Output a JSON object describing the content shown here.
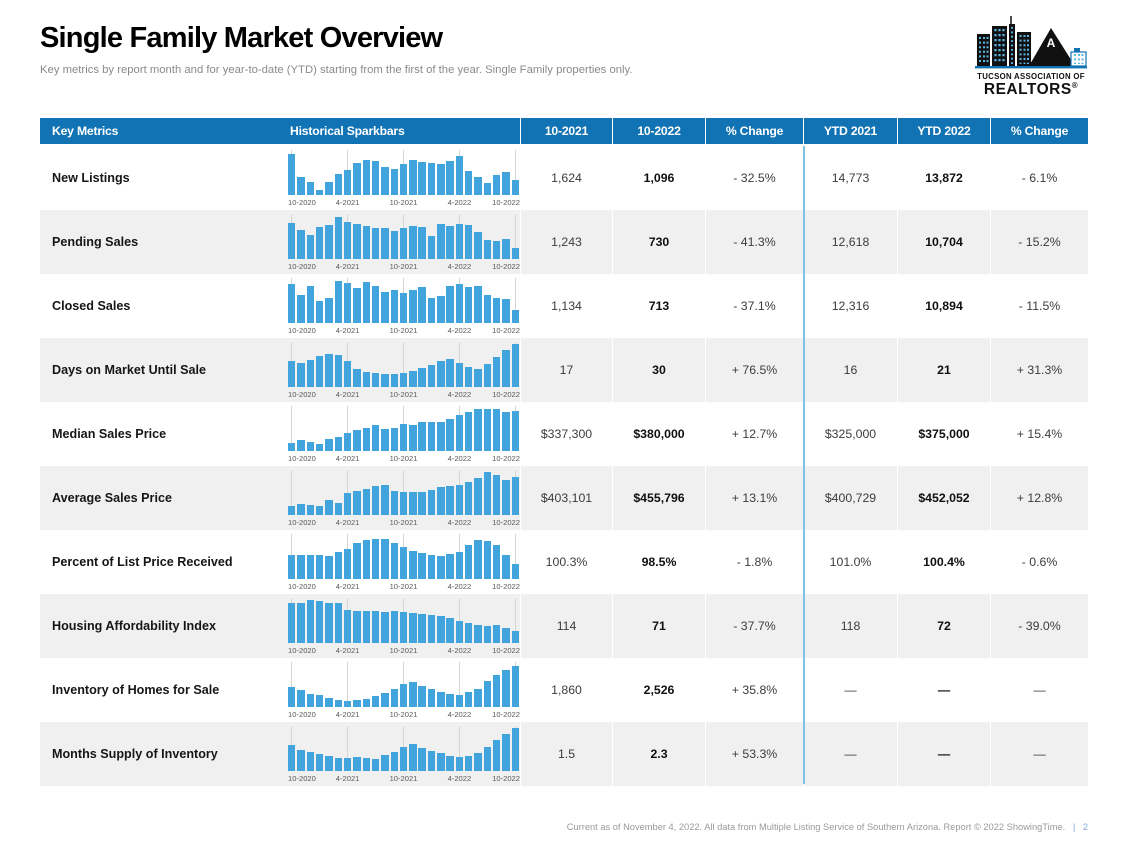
{
  "page": {
    "title": "Single Family Market Overview",
    "subtitle": "Key metrics by report month and for year-to-date (YTD) starting from the first of the year. Single Family properties only.",
    "footer": {
      "text": "Current as of November 4, 2022. All data from Multiple Listing Service of Southern Arizona. Report © 2022 ShowingTime.",
      "separator": "|",
      "page_number": "2"
    }
  },
  "logo": {
    "line1": "TUCSON ASSOCIATION OF",
    "line2": "REALTORS",
    "registered": "®",
    "mountain_letter": "A"
  },
  "colors": {
    "header_blue": "#1173b4",
    "bar_blue": "#41a4dc",
    "divider_blue": "#7fc2e8",
    "row_alt_gray": "#f0f0f0"
  },
  "table": {
    "columns": [
      "Key Metrics",
      "Historical Sparkbars",
      "10-2021",
      "10-2022",
      "% Change",
      "YTD 2021",
      "YTD 2022",
      "% Change"
    ],
    "rows": [
      {
        "label": "New Listings",
        "m2021": "1,624",
        "m2022": "1,096",
        "m_change": "- 32.5%",
        "ytd2021": "14,773",
        "ytd2022": "13,872",
        "ytd_change": "- 6.1%"
      },
      {
        "label": "Pending Sales",
        "m2021": "1,243",
        "m2022": "730",
        "m_change": "- 41.3%",
        "ytd2021": "12,618",
        "ytd2022": "10,704",
        "ytd_change": "- 15.2%"
      },
      {
        "label": "Closed Sales",
        "m2021": "1,134",
        "m2022": "713",
        "m_change": "- 37.1%",
        "ytd2021": "12,316",
        "ytd2022": "10,894",
        "ytd_change": "- 11.5%"
      },
      {
        "label": "Days on Market Until Sale",
        "m2021": "17",
        "m2022": "30",
        "m_change": "+ 76.5%",
        "ytd2021": "16",
        "ytd2022": "21",
        "ytd_change": "+ 31.3%"
      },
      {
        "label": "Median Sales Price",
        "m2021": "$337,300",
        "m2022": "$380,000",
        "m_change": "+ 12.7%",
        "ytd2021": "$325,000",
        "ytd2022": "$375,000",
        "ytd_change": "+ 15.4%"
      },
      {
        "label": "Average Sales Price",
        "m2021": "$403,101",
        "m2022": "$455,796",
        "m_change": "+ 13.1%",
        "ytd2021": "$400,729",
        "ytd2022": "$452,052",
        "ytd_change": "+ 12.8%"
      },
      {
        "label": "Percent of List Price Received",
        "m2021": "100.3%",
        "m2022": "98.5%",
        "m_change": "- 1.8%",
        "ytd2021": "101.0%",
        "ytd2022": "100.4%",
        "ytd_change": "- 0.6%"
      },
      {
        "label": "Housing Affordability Index",
        "m2021": "114",
        "m2022": "71",
        "m_change": "- 37.7%",
        "ytd2021": "118",
        "ytd2022": "72",
        "ytd_change": "- 39.0%"
      },
      {
        "label": "Inventory of Homes for Sale",
        "m2021": "1,860",
        "m2022": "2,526",
        "m_change": "+ 35.8%",
        "ytd2021": "—",
        "ytd2022": "—",
        "ytd_change": "—"
      },
      {
        "label": "Months Supply of Inventory",
        "m2021": "1.5",
        "m2022": "2.3",
        "m_change": "+ 53.3%",
        "ytd2021": "—",
        "ytd2022": "—",
        "ytd_change": "—"
      }
    ]
  },
  "chart_data": [
    {
      "type": "bar",
      "metric": "New Listings",
      "x_labels": [
        "10-2020",
        "4-2021",
        "10-2021",
        "4-2022",
        "10-2022"
      ],
      "note": "25 monthly bars, heights normalized 0-100 of sparkbar area",
      "values": [
        93,
        40,
        30,
        12,
        30,
        47,
        56,
        73,
        79,
        78,
        63,
        58,
        70,
        79,
        76,
        72,
        71,
        78,
        88,
        55,
        40,
        28,
        45,
        52,
        35
      ]
    },
    {
      "type": "bar",
      "metric": "Pending Sales",
      "x_labels": [
        "10-2020",
        "4-2021",
        "10-2021",
        "4-2022",
        "10-2022"
      ],
      "note": "25 monthly bars, heights normalized 0-100 of sparkbar area",
      "values": [
        82,
        66,
        55,
        73,
        78,
        96,
        83,
        80,
        76,
        71,
        70,
        64,
        70,
        74,
        73,
        52,
        80,
        74,
        80,
        78,
        62,
        44,
        40,
        46,
        26
      ]
    },
    {
      "type": "bar",
      "metric": "Closed Sales",
      "x_labels": [
        "10-2020",
        "4-2021",
        "10-2021",
        "4-2022",
        "10-2022"
      ],
      "note": "25 monthly bars, heights normalized 0-100 of sparkbar area",
      "values": [
        88,
        64,
        84,
        50,
        56,
        95,
        90,
        79,
        93,
        83,
        71,
        75,
        68,
        76,
        81,
        56,
        62,
        84,
        88,
        82,
        85,
        63,
        56,
        55,
        30
      ]
    },
    {
      "type": "bar",
      "metric": "Days on Market Until Sale",
      "x_labels": [
        "10-2020",
        "4-2021",
        "10-2021",
        "4-2022",
        "10-2022"
      ],
      "note": "25 monthly bars, heights normalized 0-100 of sparkbar area",
      "values": [
        58,
        55,
        62,
        70,
        74,
        72,
        58,
        42,
        35,
        32,
        30,
        30,
        31,
        36,
        44,
        50,
        60,
        64,
        55,
        45,
        42,
        52,
        68,
        85,
        97
      ]
    },
    {
      "type": "bar",
      "metric": "Median Sales Price",
      "x_labels": [
        "10-2020",
        "4-2021",
        "10-2021",
        "4-2022",
        "10-2022"
      ],
      "note": "25 monthly bars, heights normalized 0-100 of sparkbar area",
      "values": [
        18,
        26,
        20,
        16,
        28,
        31,
        42,
        48,
        52,
        58,
        50,
        52,
        62,
        58,
        65,
        65,
        66,
        72,
        82,
        88,
        95,
        96,
        95,
        88,
        92
      ]
    },
    {
      "type": "bar",
      "metric": "Average Sales Price",
      "x_labels": [
        "10-2020",
        "4-2021",
        "10-2021",
        "4-2022",
        "10-2022"
      ],
      "note": "25 monthly bars, heights normalized 0-100 of sparkbar area",
      "values": [
        20,
        26,
        22,
        20,
        35,
        28,
        50,
        55,
        60,
        66,
        68,
        55,
        52,
        52,
        53,
        56,
        64,
        65,
        68,
        76,
        84,
        97,
        92,
        80,
        86
      ]
    },
    {
      "type": "bar",
      "metric": "Percent of List Price Received",
      "x_labels": [
        "10-2020",
        "4-2021",
        "10-2021",
        "4-2022",
        "10-2022"
      ],
      "note": "25 monthly bars, heights normalized 0-100 of sparkbar area",
      "values": [
        55,
        55,
        55,
        55,
        52,
        62,
        68,
        82,
        88,
        92,
        90,
        82,
        72,
        64,
        58,
        54,
        52,
        56,
        62,
        78,
        88,
        86,
        78,
        55,
        33
      ]
    },
    {
      "type": "bar",
      "metric": "Housing Affordability Index",
      "x_labels": [
        "10-2020",
        "4-2021",
        "10-2021",
        "4-2022",
        "10-2022"
      ],
      "note": "25 monthly bars, heights normalized 0-100 of sparkbar area",
      "values": [
        92,
        92,
        97,
        95,
        92,
        92,
        75,
        73,
        73,
        72,
        70,
        72,
        71,
        68,
        67,
        64,
        61,
        57,
        51,
        45,
        40,
        38,
        41,
        35,
        28
      ]
    },
    {
      "type": "bar",
      "metric": "Inventory of Homes for Sale",
      "x_labels": [
        "10-2020",
        "4-2021",
        "10-2021",
        "4-2022",
        "10-2022"
      ],
      "note": "25 monthly bars, heights normalized 0-100 of sparkbar area",
      "values": [
        46,
        38,
        30,
        27,
        21,
        16,
        14,
        16,
        19,
        25,
        32,
        42,
        52,
        57,
        47,
        40,
        33,
        29,
        28,
        33,
        42,
        60,
        73,
        83,
        94
      ]
    },
    {
      "type": "bar",
      "metric": "Months Supply of Inventory",
      "x_labels": [
        "10-2020",
        "4-2021",
        "10-2021",
        "4-2022",
        "10-2022"
      ],
      "note": "25 monthly bars, heights normalized 0-100 of sparkbar area",
      "values": [
        60,
        48,
        44,
        38,
        33,
        30,
        30,
        32,
        30,
        28,
        36,
        44,
        55,
        62,
        52,
        46,
        40,
        34,
        32,
        33,
        40,
        55,
        70,
        85,
        97
      ]
    }
  ]
}
